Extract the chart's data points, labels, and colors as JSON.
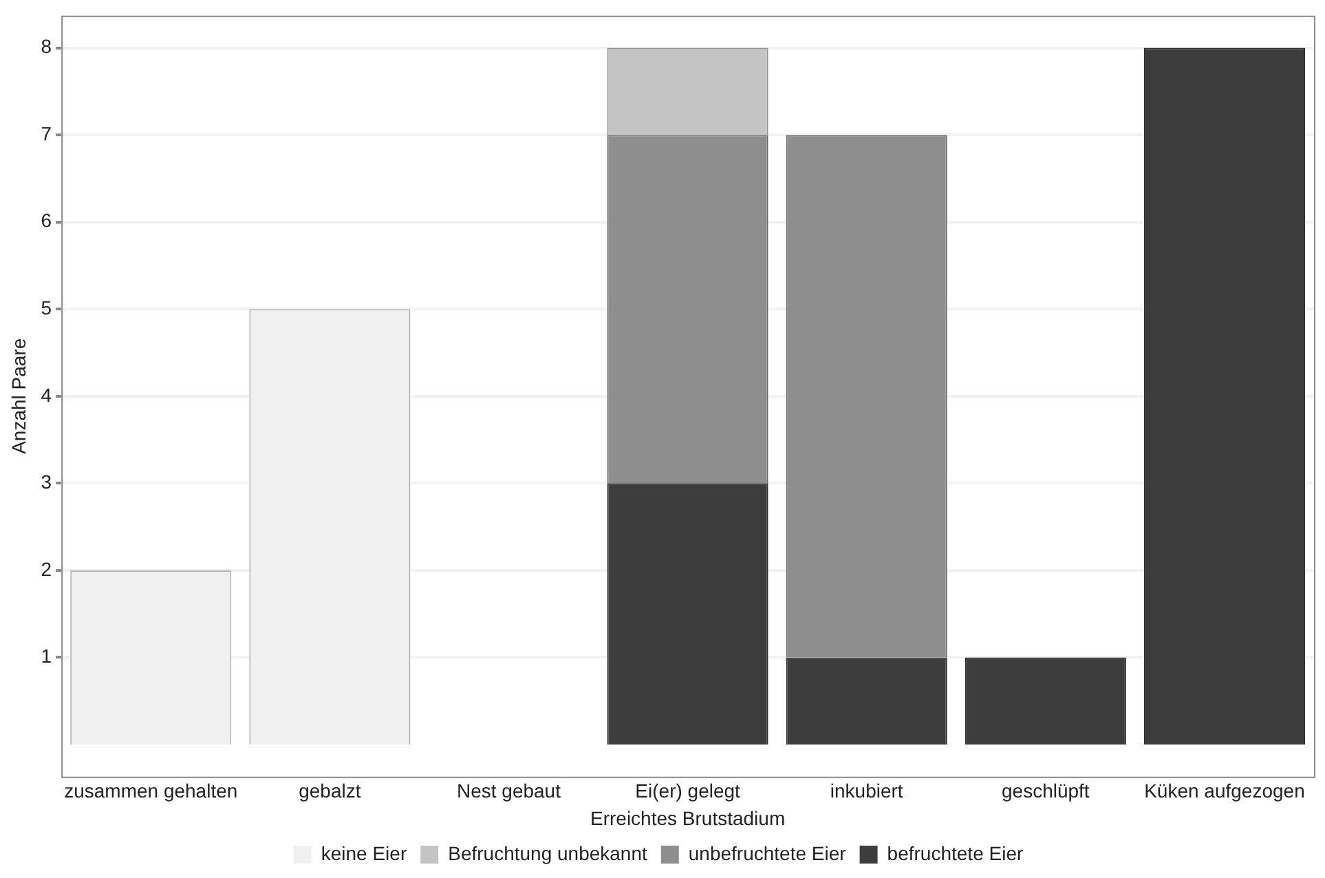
{
  "chart_data": {
    "type": "bar",
    "stacked": true,
    "xlabel": "Erreichtes Brutstadium",
    "ylabel": "Anzahl Paare",
    "categories": [
      "zusammen gehalten",
      "gebalzt",
      "Nest gebaut",
      "Ei(er) gelegt",
      "inkubiert",
      "geschlüpft",
      "Küken aufgezogen"
    ],
    "series": [
      {
        "name": "befruchtete Eier",
        "color": "#3d3d3d",
        "values": [
          0,
          0,
          0,
          3,
          1,
          1,
          8
        ]
      },
      {
        "name": "unbefruchtete Eier",
        "color": "#8e8e8e",
        "values": [
          0,
          0,
          0,
          4,
          6,
          0,
          0
        ]
      },
      {
        "name": "Befruchtung unbekannt",
        "color": "#c4c4c4",
        "values": [
          0,
          0,
          0,
          1,
          0,
          0,
          0
        ]
      },
      {
        "name": "keine Eier",
        "color": "#f0f0f0",
        "values": [
          2,
          5,
          0,
          0,
          0,
          0,
          0
        ]
      }
    ],
    "ylim": [
      -0.37,
      8.37
    ],
    "yticks": [
      1,
      2,
      3,
      4,
      5,
      6,
      7,
      8
    ],
    "grid": "y",
    "legend": "bottom"
  }
}
